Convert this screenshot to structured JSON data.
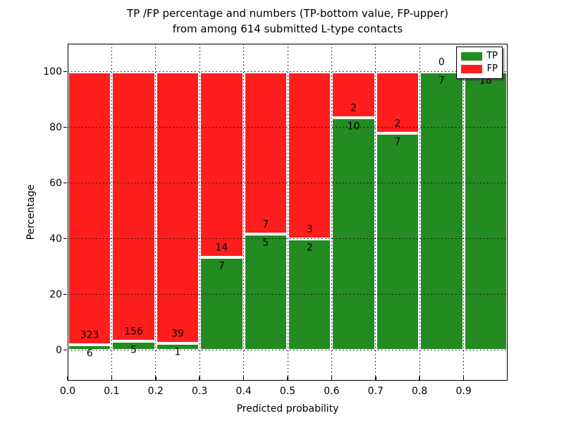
{
  "chart_data": {
    "type": "bar",
    "stacking": "percent-stacked",
    "title": "TP /FP percentage and numbers (TP-bottom value, FP-upper)",
    "subtitle": "from among 614 submitted L-type contacts",
    "total_contacts": 614,
    "xlabel": "Predicted probability",
    "ylabel": "Percentage",
    "bins": [
      "0.0-0.1",
      "0.1-0.2",
      "0.2-0.3",
      "0.3-0.4",
      "0.4-0.5",
      "0.5-0.6",
      "0.6-0.7",
      "0.7-0.8",
      "0.8-0.9",
      "0.9-1.0"
    ],
    "bin_edges": [
      0.0,
      0.1,
      0.2,
      0.3,
      0.4,
      0.5,
      0.6,
      0.7,
      0.8,
      0.9,
      1.0
    ],
    "series": [
      {
        "name": "TP",
        "color": "#228b22",
        "counts": [
          6,
          5,
          1,
          7,
          5,
          2,
          10,
          7,
          7,
          18
        ]
      },
      {
        "name": "FP",
        "color": "#ff1e1e",
        "counts": [
          323,
          156,
          39,
          14,
          7,
          3,
          2,
          2,
          0,
          0
        ]
      }
    ],
    "tp_percent": [
      1.8,
      3.1,
      2.5,
      33.3,
      41.7,
      40.0,
      83.3,
      77.8,
      100.0,
      100.0
    ],
    "x_ticks": [
      "0.0",
      "0.1",
      "0.2",
      "0.3",
      "0.4",
      "0.5",
      "0.6",
      "0.7",
      "0.8",
      "0.9"
    ],
    "y_ticks": [
      0,
      20,
      40,
      60,
      80,
      100
    ],
    "xlim": [
      0.0,
      1.0
    ],
    "ylim": [
      -11,
      110
    ],
    "grid": true,
    "grid_style": "dotted",
    "legend": {
      "position": "upper right",
      "entries": [
        {
          "label": "TP",
          "color": "#228b22"
        },
        {
          "label": "FP",
          "color": "#ff1e1e"
        }
      ]
    }
  }
}
